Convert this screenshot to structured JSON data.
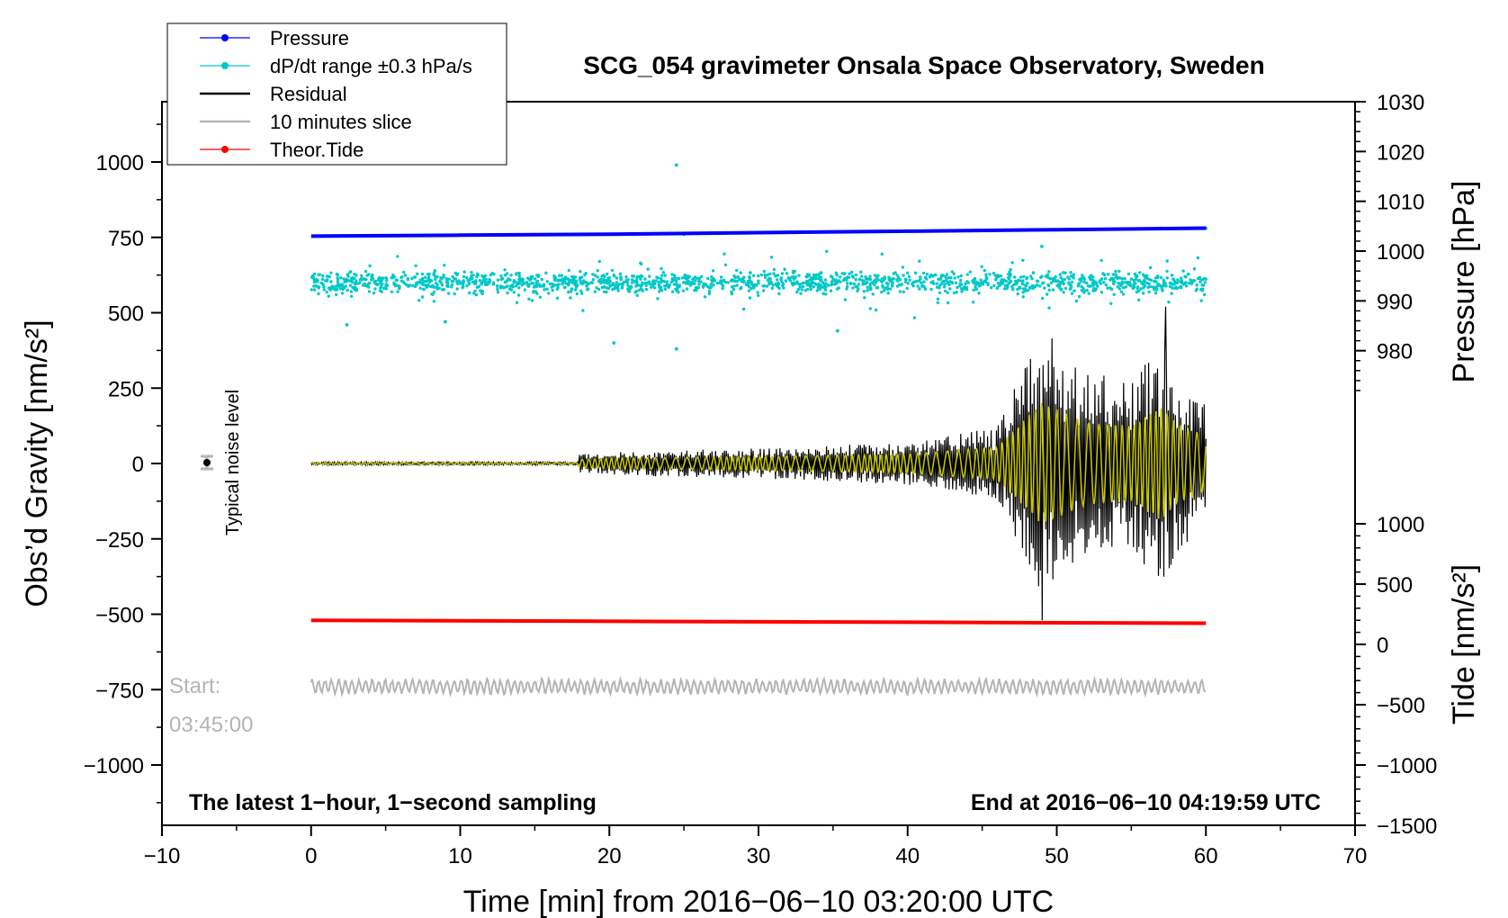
{
  "chart_data": {
    "type": "scatter",
    "title": "SCG_054 gravimeter Onsala Space Observatory, Sweden",
    "xlabel": "Time [min] from 2016−06−10 03:20:00 UTC",
    "ylabel_left": "Obs’d Gravity [nm/s²]",
    "ylabel_right_top": "Pressure [hPa]",
    "ylabel_right_bottom": "Tide [nm/s²]",
    "xlim": [
      -10,
      70
    ],
    "ylim": [
      -1200,
      1200
    ],
    "pressure_ylim": [
      970,
      1030
    ],
    "x_ticks": [
      {
        "value": -10,
        "label": "−10"
      },
      {
        "value": 0,
        "label": "0"
      },
      {
        "value": 10,
        "label": "10"
      },
      {
        "value": 20,
        "label": "20"
      },
      {
        "value": 30,
        "label": "30"
      },
      {
        "value": 40,
        "label": "40"
      },
      {
        "value": 50,
        "label": "50"
      },
      {
        "value": 60,
        "label": "60"
      },
      {
        "value": 70,
        "label": "70"
      }
    ],
    "y_ticks_left": [
      {
        "value": 1000,
        "label": "1000"
      },
      {
        "value": 750,
        "label": "750"
      },
      {
        "value": 500,
        "label": "500"
      },
      {
        "value": 250,
        "label": "250"
      },
      {
        "value": 0,
        "label": "0"
      },
      {
        "value": -250,
        "label": "−250"
      },
      {
        "value": -500,
        "label": "−500"
      },
      {
        "value": -750,
        "label": "−750"
      },
      {
        "value": -1000,
        "label": "−1000"
      }
    ],
    "y_ticks_pressure": [
      {
        "value": 1030,
        "label": "1030"
      },
      {
        "value": 1020,
        "label": "1020"
      },
      {
        "value": 1010,
        "label": "1010"
      },
      {
        "value": 1000,
        "label": "1000"
      },
      {
        "value": 990,
        "label": "990"
      },
      {
        "value": 980,
        "label": "980"
      }
    ],
    "y_ticks_tide": [
      {
        "value": 1000,
        "label": "1000"
      },
      {
        "value": 500,
        "label": "500"
      },
      {
        "value": 0,
        "label": "0"
      },
      {
        "value": -500,
        "label": "−500"
      },
      {
        "value": -1000,
        "label": "−1000"
      },
      {
        "value": -1500,
        "label": "−1500"
      }
    ],
    "tide_axis_map": {
      "tide_zero_gravity": -600,
      "gravity_per_tide_unit": 0.4
    },
    "legend": {
      "position": "top-left",
      "entries": [
        {
          "label": "Pressure",
          "color": "#0000ff",
          "marker": "dot"
        },
        {
          "label": "dP/dt range ±0.3 hPa/s",
          "color": "#00c8c8",
          "marker": "dot"
        },
        {
          "label": "Residual",
          "color": "#000000",
          "marker": "line"
        },
        {
          "label": "10 minutes slice",
          "color": "#b4b4b4",
          "marker": "line"
        },
        {
          "label": "Theor.Tide",
          "color": "#ff0000",
          "marker": "dot"
        }
      ]
    },
    "series": [
      {
        "name": "Pressure",
        "color": "#0000ff",
        "x": [
          0,
          10,
          20,
          30,
          40,
          50,
          60
        ],
        "values": [
          1003.0,
          1003.2,
          1003.4,
          1003.7,
          1004.0,
          1004.3,
          1004.6
        ],
        "unit": "hPa"
      },
      {
        "name": "dP/dt range",
        "color": "#00c8c8",
        "center_gravity": 600,
        "typical_spread": 30,
        "outliers_x": [
          2.4,
          9.0,
          20.3,
          24.5,
          24.5,
          25.0,
          35.3,
          49.0,
          57.0,
          60.0
        ],
        "outliers_y": [
          460,
          470,
          400,
          990,
          380,
          760,
          440,
          720,
          780,
          780
        ]
      },
      {
        "name": "Residual",
        "color": "#000000",
        "x": [
          0,
          17.9,
          18,
          21,
          30,
          40,
          46,
          49,
          52,
          55,
          57,
          58,
          60
        ],
        "envelope": [
          5,
          5,
          30,
          40,
          50,
          70,
          120,
          450,
          300,
          280,
          420,
          300,
          200
        ],
        "peak_max_x": 57.3,
        "peak_max": 520,
        "peak_min_x": 49.0,
        "peak_min": -520
      },
      {
        "name": "10 minutes slice",
        "color": "#b4b4b4",
        "baseline": -740,
        "amplitude": 25
      },
      {
        "name": "Theor.Tide",
        "color": "#ff0000",
        "x": [
          0,
          60
        ],
        "values": [
          200,
          175
        ],
        "unit": "nm/s²"
      }
    ],
    "annotations": {
      "sampling": "The latest 1−hour, 1−second sampling",
      "end_time": "End at 2016−06−10 04:19:59 UTC",
      "start_label": "Start:",
      "start_time": "03:45:00",
      "noise_label": "Typical noise level"
    }
  },
  "colors": {
    "pressure": "#0000ff",
    "dpdt": "#00c8c8",
    "residual": "#000000",
    "slice": "#b4b4b4",
    "tide": "#ff0000",
    "filtered": "#c8c800"
  }
}
